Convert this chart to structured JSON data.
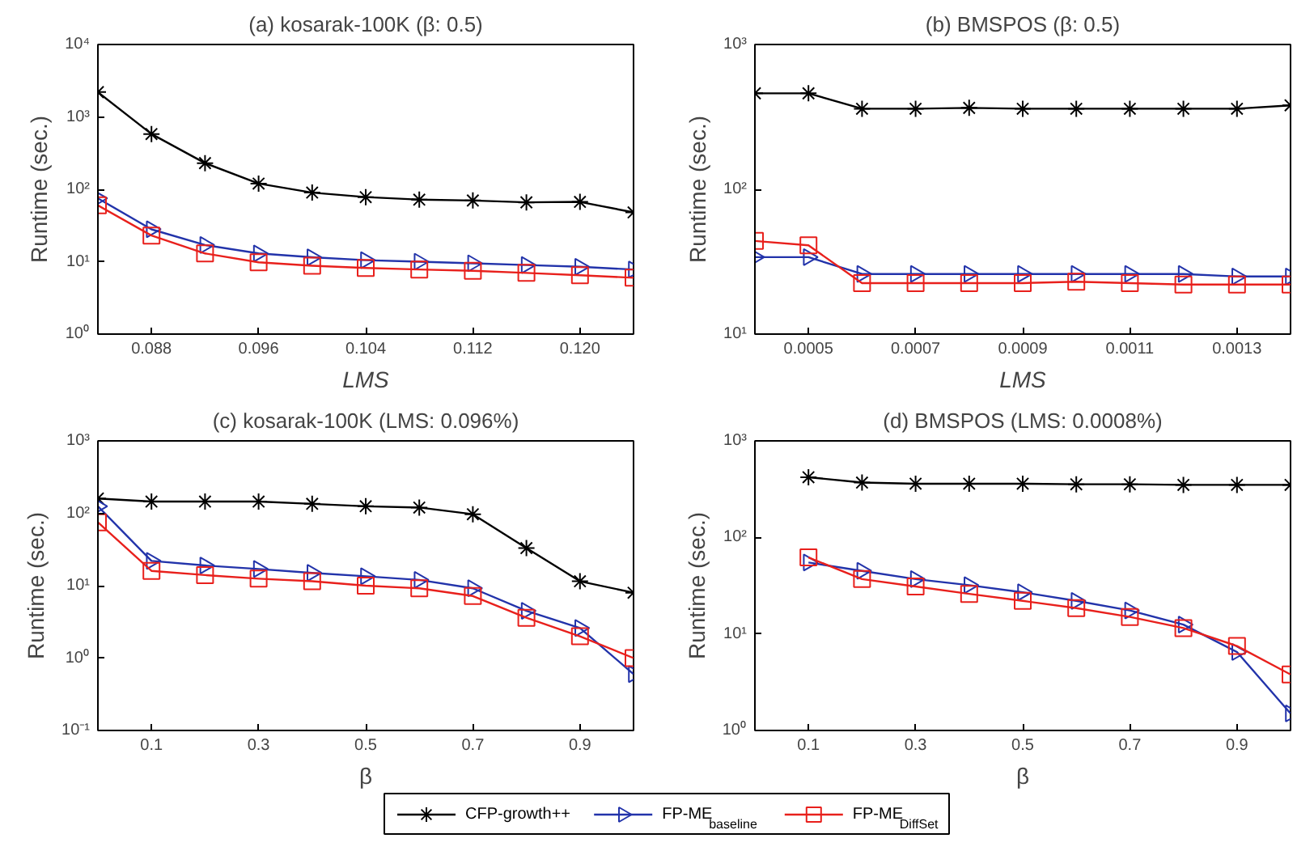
{
  "chart_data": [
    {
      "type": "line",
      "title": "(a) kosarak-100K (β: 0.5)",
      "xlabel": "LMS",
      "ylabel": "Runtime (sec.)",
      "log": "y",
      "grid": false,
      "legend": "bottom",
      "x": [
        0.084,
        0.088,
        0.092,
        0.096,
        0.1,
        0.104,
        0.108,
        0.112,
        0.116,
        0.12,
        0.124
      ],
      "xlim": [
        0.084,
        0.124
      ],
      "xticks": [
        0.088,
        0.096,
        0.104,
        0.112,
        {
          "value": 0.12,
          "label": "0.120"
        }
      ],
      "ylim": [
        1,
        10000
      ],
      "yticks": [
        {
          "value": 1,
          "label": "10⁰"
        },
        {
          "value": 10,
          "label": "10¹"
        },
        {
          "value": 100,
          "label": "10²"
        },
        {
          "value": 1000,
          "label": "10³"
        },
        {
          "value": 10000,
          "label": "10⁴"
        }
      ],
      "series": [
        {
          "name": "CFP-growth++",
          "color": "#000000",
          "marker": "cross",
          "values": [
            2200,
            580,
            230,
            120,
            90,
            78,
            72,
            70,
            66,
            67,
            48
          ]
        },
        {
          "name": "FP-ME$_{baseline}$",
          "color": "#2233aa",
          "marker": "triangle",
          "values": [
            75,
            28,
            17,
            13,
            11.5,
            10.5,
            10,
            9.5,
            9,
            8.5,
            7.8
          ]
        },
        {
          "name": "FP-ME$_{DiffSet}$",
          "color": "#e8201c",
          "marker": "square",
          "values": [
            60,
            23,
            13,
            9.8,
            8.8,
            8.2,
            7.8,
            7.5,
            7.0,
            6.5,
            6.0
          ]
        }
      ]
    },
    {
      "type": "line",
      "title": "(b) BMSPOS (β: 0.5)",
      "xlabel": "LMS",
      "ylabel": "Runtime (sec.)",
      "log": "y",
      "grid": false,
      "legend": "bottom",
      "x": [
        0.0004,
        0.0005,
        0.0006,
        0.0007,
        0.0008,
        0.0009,
        0.001,
        0.0011,
        0.0012,
        0.0013,
        0.0014
      ],
      "xlim": [
        0.0004,
        0.0014
      ],
      "xticks": [
        0.0005,
        0.0007,
        0.0009,
        0.0011,
        0.0013
      ],
      "ylim": [
        10,
        1000
      ],
      "yticks": [
        {
          "value": 10,
          "label": "10¹"
        },
        {
          "value": 100,
          "label": "10²"
        },
        {
          "value": 1000,
          "label": "10³"
        }
      ],
      "series": [
        {
          "name": "CFP-growth++",
          "color": "#000000",
          "marker": "cross",
          "values": [
            460,
            460,
            360,
            360,
            365,
            360,
            360,
            360,
            360,
            360,
            380
          ]
        },
        {
          "name": "FP-ME$_{baseline}$",
          "color": "#2233aa",
          "marker": "triangle",
          "values": [
            34,
            34,
            26,
            26,
            26,
            26,
            26,
            26,
            26,
            25,
            25
          ]
        },
        {
          "name": "FP-ME$_{DiffSet}$",
          "color": "#e8201c",
          "marker": "square",
          "values": [
            44,
            41,
            22.5,
            22.5,
            22.5,
            22.5,
            23,
            22.5,
            22,
            22,
            22
          ]
        }
      ]
    },
    {
      "type": "line",
      "title": "(c) kosarak-100K (LMS: 0.096%)",
      "xlabel": "β",
      "ylabel": "Runtime (sec.)",
      "log": "y",
      "grid": false,
      "legend": "bottom",
      "x": [
        0,
        0.1,
        0.2,
        0.3,
        0.4,
        0.5,
        0.6,
        0.7,
        0.8,
        0.9,
        1.0
      ],
      "xlim": [
        0,
        1
      ],
      "xticks": [
        0.1,
        0.3,
        0.5,
        0.7,
        0.9
      ],
      "ylim": [
        0.1,
        1000
      ],
      "yticks": [
        {
          "value": 0.1,
          "label": "10⁻¹"
        },
        {
          "value": 1,
          "label": "10⁰"
        },
        {
          "value": 10,
          "label": "10¹"
        },
        {
          "value": 100,
          "label": "10²"
        },
        {
          "value": 1000,
          "label": "10³"
        }
      ],
      "series": [
        {
          "name": "CFP-growth++",
          "color": "#000000",
          "marker": "cross",
          "values": [
            160,
            145,
            145,
            145,
            135,
            125,
            120,
            97,
            33,
            11.5,
            8
          ]
        },
        {
          "name": "FP-ME$_{baseline}$",
          "color": "#2233aa",
          "marker": "triangle",
          "values": [
            125,
            22,
            19,
            17,
            15,
            13.5,
            12,
            9.2,
            4.5,
            2.6,
            0.6
          ]
        },
        {
          "name": "FP-ME$_{DiffSet}$",
          "color": "#e8201c",
          "marker": "square",
          "values": [
            75,
            16,
            14,
            12.5,
            11.5,
            10,
            9.2,
            7.2,
            3.6,
            2,
            1.0
          ]
        }
      ]
    },
    {
      "type": "line",
      "title": "(d) BMSPOS (LMS: 0.0008%)",
      "xlabel": "β",
      "ylabel": "Runtime (sec.)",
      "log": "y",
      "grid": false,
      "legend": "bottom",
      "x": [
        0.1,
        0.2,
        0.3,
        0.4,
        0.5,
        0.6,
        0.7,
        0.8,
        0.9,
        1.0
      ],
      "xlim": [
        0,
        1
      ],
      "xticks": [
        0.1,
        0.3,
        0.5,
        0.7,
        0.9
      ],
      "ylim": [
        1,
        1000
      ],
      "yticks": [
        {
          "value": 1,
          "label": "10⁰"
        },
        {
          "value": 10,
          "label": "10¹"
        },
        {
          "value": 100,
          "label": "10²"
        },
        {
          "value": 1000,
          "label": "10³"
        }
      ],
      "series": [
        {
          "name": "CFP-growth++",
          "color": "#000000",
          "marker": "cross",
          "values": [
            420,
            370,
            360,
            360,
            360,
            355,
            355,
            350,
            350,
            350
          ]
        },
        {
          "name": "FP-ME$_{baseline}$",
          "color": "#2233aa",
          "marker": "triangle",
          "values": [
            55,
            45,
            37,
            32,
            27,
            22,
            17.5,
            12.5,
            6.5,
            1.5
          ]
        },
        {
          "name": "FP-ME$_{DiffSet}$",
          "color": "#e8201c",
          "marker": "square",
          "values": [
            62,
            37,
            31,
            26,
            22,
            18.5,
            15,
            11.5,
            7.5,
            3.8
          ]
        }
      ]
    }
  ]
}
